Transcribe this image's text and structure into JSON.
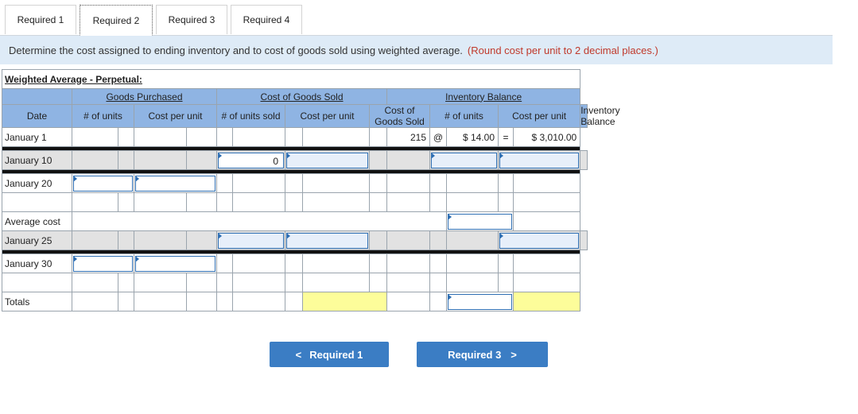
{
  "tabs": [
    {
      "label": "Required 1"
    },
    {
      "label": "Required 2"
    },
    {
      "label": "Required 3"
    },
    {
      "label": "Required 4"
    }
  ],
  "instruction": {
    "text": "Determine the cost assigned to ending inventory and to cost of goods sold using weighted average.",
    "note": "(Round cost per unit to 2 decimal places.)"
  },
  "table": {
    "title": "Weighted Average - Perpetual:",
    "groups": {
      "purchased": "Goods Purchased",
      "cogs": "Cost of Goods Sold",
      "inventory": "Inventory Balance"
    },
    "headers": {
      "date": "Date",
      "p_units": "# of units",
      "p_cost": "Cost per unit",
      "s_units": "# of units sold",
      "s_cost": "Cost per unit",
      "s_total": "Cost of Goods Sold",
      "i_units": "# of units",
      "i_cost": "Cost per unit",
      "i_total": "Inventory Balance"
    },
    "rows": {
      "jan1": {
        "date": "January 1",
        "i_units": "215",
        "at": "@",
        "i_cost": "$ 14.00",
        "eq": "=",
        "i_total": "$ 3,010.00"
      },
      "jan10": {
        "date": "January 10",
        "s_units": "0"
      },
      "jan20": {
        "date": "January 20"
      },
      "avg": {
        "date": "Average cost"
      },
      "jan25": {
        "date": "January 25"
      },
      "jan30": {
        "date": "January 30"
      },
      "totals": {
        "date": "Totals"
      }
    }
  },
  "buttons": {
    "prev": "Required 1",
    "next": "Required 3"
  }
}
